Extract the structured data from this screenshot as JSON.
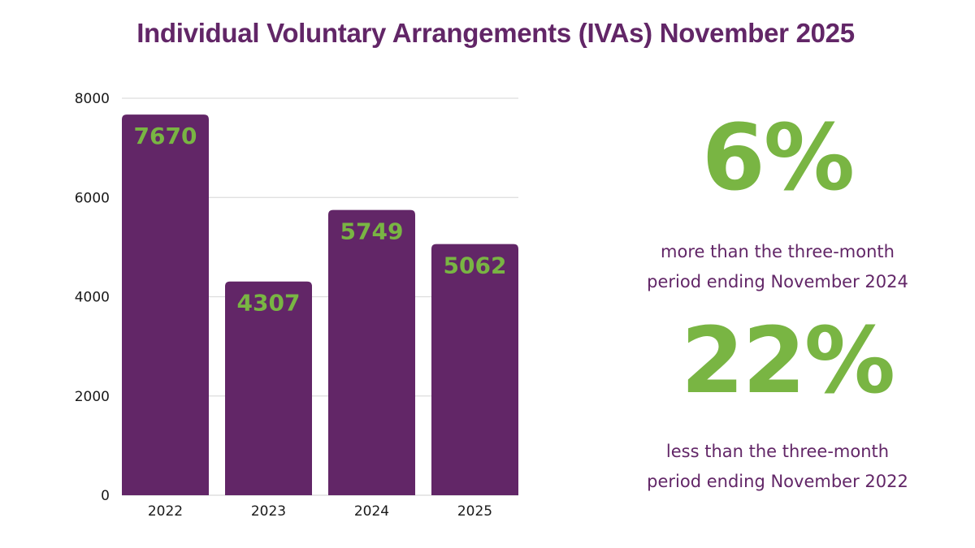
{
  "title": "Individual Voluntary Arrangements (IVAs) November 2025",
  "colors": {
    "bar": "#622667",
    "data_label": "#79b543",
    "title": "#622667",
    "gridline": "#dddddd",
    "stat_value": "#79b543",
    "stat_caption": "#622667"
  },
  "stats": [
    {
      "value": "6%",
      "caption_line1": "more than the three-month",
      "caption_line2": "period ending November 2024"
    },
    {
      "value": "22%",
      "caption_line1": "less than the three-month",
      "caption_line2": "period ending November 2022"
    }
  ],
  "chart_data": {
    "type": "bar",
    "title": "Individual Voluntary Arrangements (IVAs) November 2025",
    "xlabel": "",
    "ylabel": "",
    "categories": [
      "2022",
      "2023",
      "2024",
      "2025"
    ],
    "values": [
      7670,
      4307,
      5749,
      5062
    ],
    "data_labels": [
      "7670",
      "4307",
      "5749",
      "5062"
    ],
    "ylim": [
      0,
      8000
    ],
    "yticks": [
      0,
      2000,
      4000,
      6000,
      8000
    ],
    "ytick_labels": [
      "0",
      "2000",
      "4000",
      "6000",
      "8000"
    ],
    "grid": true,
    "legend": "none",
    "data_label_position": "inside-top"
  }
}
